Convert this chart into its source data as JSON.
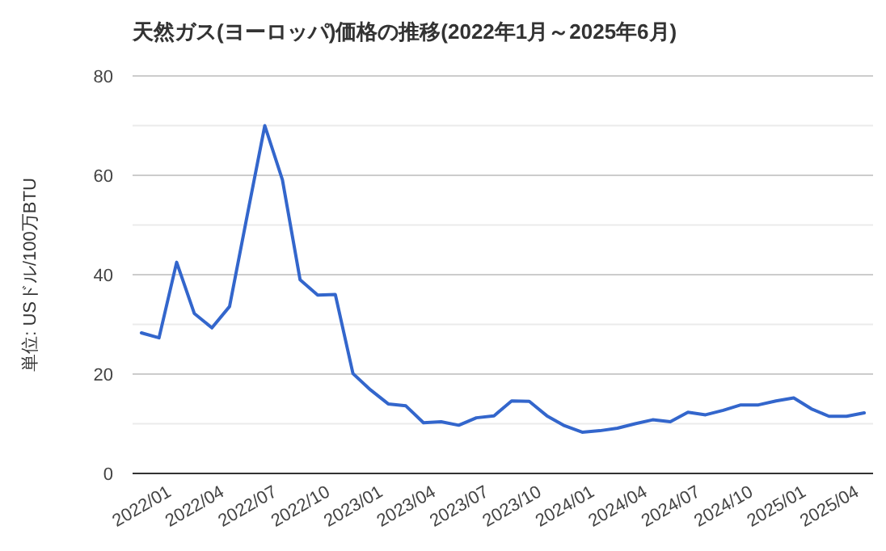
{
  "chart_data": {
    "type": "line",
    "title": "天然ガス(ヨーロッパ)価格の推移(2022年1月～2025年6月)",
    "ylabel": "単位: USドル/100万BTU",
    "categories": [
      "2022/01",
      null,
      null,
      "2022/04",
      null,
      null,
      "2022/07",
      null,
      null,
      "2022/10",
      null,
      null,
      "2023/01",
      null,
      null,
      "2023/04",
      null,
      null,
      "2023/07",
      null,
      null,
      "2023/10",
      null,
      null,
      "2024/01",
      null,
      null,
      "2024/04",
      null,
      null,
      "2024/07",
      null,
      null,
      "2024/10",
      null,
      null,
      "2025/01",
      null,
      null,
      "2025/04",
      null,
      null
    ],
    "series": [
      {
        "color": "#3366cc",
        "values": [
          28.3,
          27.3,
          42.5,
          32.2,
          29.3,
          33.6,
          51.9,
          70.0,
          59.1,
          39.0,
          35.9,
          36.0,
          20.1,
          16.8,
          14.0,
          13.6,
          10.2,
          10.4,
          9.7,
          11.2,
          11.6,
          14.6,
          14.5,
          11.6,
          9.6,
          8.3,
          8.6,
          9.1,
          10.0,
          10.8,
          10.4,
          12.3,
          11.8,
          12.7,
          13.8,
          13.8,
          14.6,
          15.2,
          13.0,
          11.5,
          11.5,
          12.2
        ]
      }
    ],
    "ylim": [
      0,
      80
    ],
    "yticks": [
      0,
      {
        "value": 10,
        "label": null
      },
      20,
      {
        "value": 30,
        "label": null
      },
      40,
      {
        "value": 50,
        "label": null
      },
      60,
      {
        "value": 70,
        "label": null
      },
      80
    ],
    "grid": "y",
    "marker": "none",
    "line_style": "solid"
  }
}
